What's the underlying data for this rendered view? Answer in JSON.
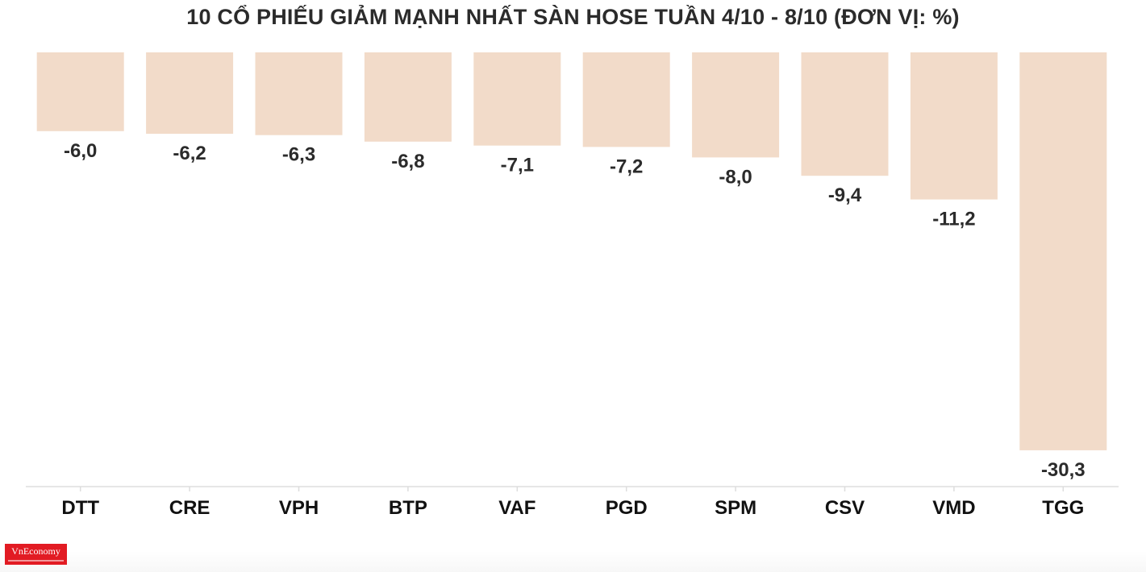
{
  "chart_data": {
    "type": "bar",
    "title": "10 CỔ PHIẾU GIẢM MẠNH NHẤT SÀN HOSE TUẦN 4/10 - 8/10 (ĐƠN VỊ: %)",
    "categories": [
      "DTT",
      "CRE",
      "VPH",
      "BTP",
      "VAF",
      "PGD",
      "SPM",
      "CSV",
      "VMD",
      "TGG"
    ],
    "values": [
      -6.0,
      -6.2,
      -6.3,
      -6.8,
      -7.1,
      -7.2,
      -8.0,
      -9.4,
      -11.2,
      -30.3
    ],
    "value_labels": [
      "-6,0",
      "-6,2",
      "-6,3",
      "-6,8",
      "-7,1",
      "-7,2",
      "-8,0",
      "-9,4",
      "-11,2",
      "-30,3"
    ],
    "bar_color": "#f2dbc9",
    "label_color": "#2b2b2b",
    "axis_line_color": "#dddddd",
    "xlabel": "",
    "ylabel": "",
    "grid": false,
    "legend": "none"
  },
  "branding": {
    "logo_text": "VnEconomy",
    "logo_color": "#e21b23"
  }
}
